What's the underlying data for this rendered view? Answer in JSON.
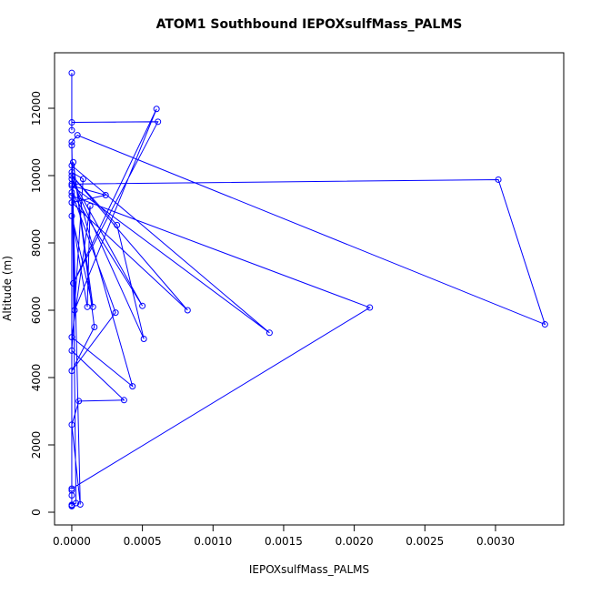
{
  "chart_data": {
    "type": "line",
    "title": "ATOM1 Southbound IEPOXsulfMass_PALMS",
    "x_label": "IEPOXsulfMass_PALMS",
    "y_label": "Altitude (m)",
    "x": [
      0,
      0,
      0,
      0.00061,
      1e-05,
      0.0006,
      2e-05,
      0,
      4e-05,
      0.00335,
      0.00302,
      0,
      0,
      0.00211,
      0,
      0,
      0.0014,
      0,
      0.00024,
      0,
      0.00082,
      0,
      0.00032,
      0.00051,
      0,
      0.0005,
      0,
      0.00031,
      0,
      0.00016,
      1e-05,
      0.00015,
      0,
      0.00011,
      0.00013,
      0,
      0.00043,
      0,
      8e-05,
      0,
      0.00037,
      5e-05,
      0,
      6e-05,
      0,
      3e-05,
      0,
      0,
      0,
      0,
      0
    ],
    "series": [
      {
        "name": "IEPOXsulfMass_PALMS",
        "color": "#0000ff",
        "values": [
          13050,
          11350,
          11580,
          11600,
          6800,
          11980,
          6000,
          11000,
          11200,
          5580,
          9880,
          9750,
          9400,
          6080,
          700,
          10300,
          5330,
          9700,
          9420,
          9200,
          6000,
          10000,
          8530,
          5150,
          9900,
          6130,
          9500,
          5930,
          4200,
          5500,
          10400,
          6100,
          8800,
          6100,
          9100,
          5200,
          3740,
          10100,
          9900,
          4800,
          3330,
          3300,
          2600,
          230,
          10900,
          270,
          200,
          180,
          220,
          500,
          650
        ]
      }
    ],
    "xlim": [
      -0.000122,
      0.003483
    ],
    "ylim": [
      -378,
      13649
    ],
    "xticks": [
      {
        "value": 0,
        "label": "0.0000"
      },
      {
        "value": 0.0005,
        "label": "0.0005"
      },
      {
        "value": 0.001,
        "label": "0.0010"
      },
      {
        "value": 0.0015,
        "label": "0.0015"
      },
      {
        "value": 0.002,
        "label": "0.0020"
      },
      {
        "value": 0.0025,
        "label": "0.0025"
      },
      {
        "value": 0.003,
        "label": "0.0030"
      }
    ],
    "yticks": [
      0,
      2000,
      4000,
      6000,
      8000,
      10000,
      12000
    ]
  }
}
